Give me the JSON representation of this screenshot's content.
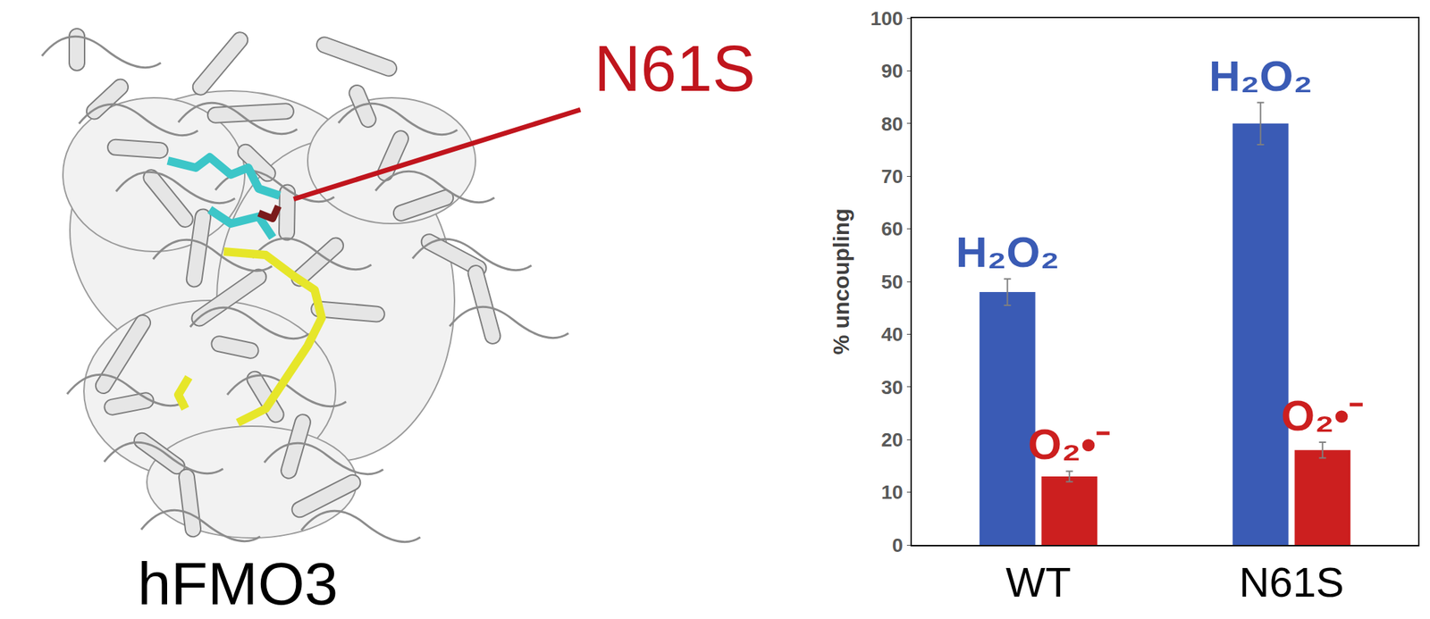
{
  "chart_data": {
    "type": "bar",
    "categories": [
      "WT",
      "N61S"
    ],
    "y_label": "% uncoupling",
    "ylim": [
      0,
      100
    ],
    "yticks": [
      0,
      10,
      20,
      30,
      40,
      50,
      60,
      70,
      80,
      90,
      100
    ],
    "grid": false,
    "series": [
      {
        "name": "H₂O₂",
        "color": "#3a5bb5",
        "values": [
          48,
          80
        ],
        "errors": [
          2.5,
          4
        ]
      },
      {
        "name": "O₂•⁻",
        "color": "#cc1f1f",
        "values": [
          13,
          18
        ],
        "errors": [
          1,
          1.5
        ]
      }
    ]
  },
  "structure_panel": {
    "caption": "hFMO3",
    "callout": "N61S",
    "color": "#c0151d"
  }
}
